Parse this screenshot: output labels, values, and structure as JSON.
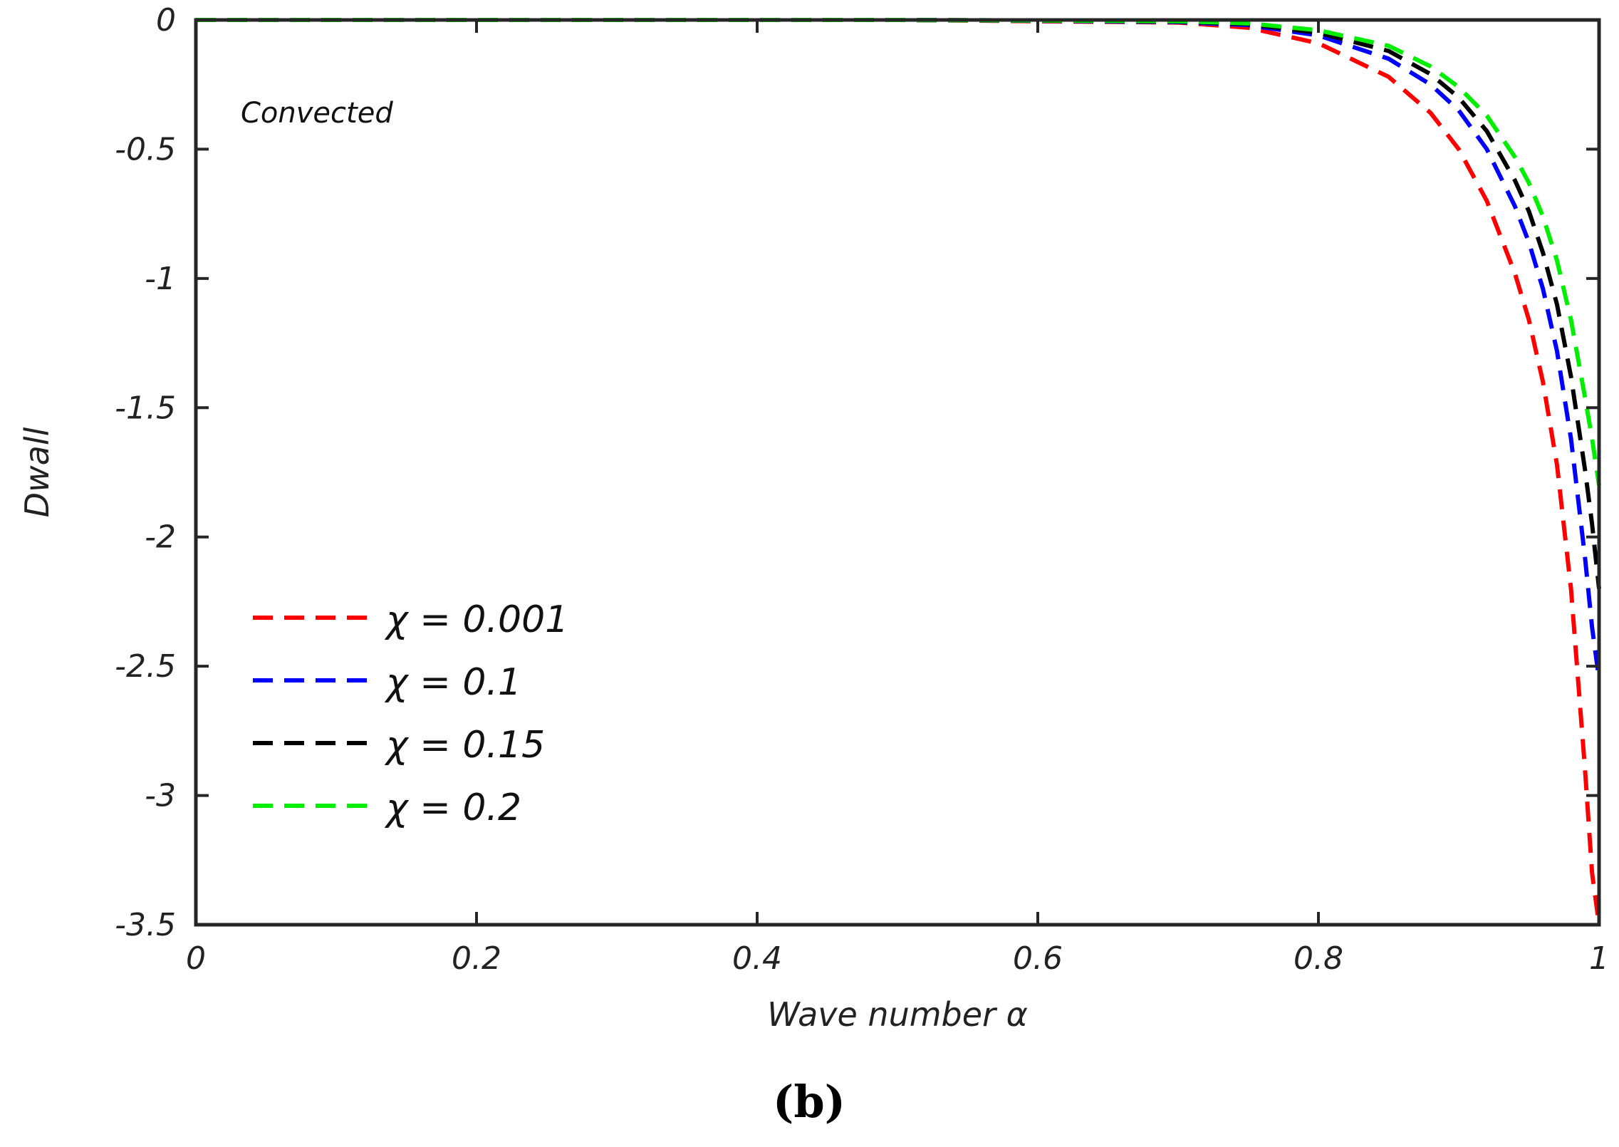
{
  "chart_data": {
    "type": "line",
    "xlabel": "Wave number α",
    "ylabel": "Dwall",
    "xlim": [
      0,
      1
    ],
    "ylim": [
      -3.5,
      0
    ],
    "x_ticks": [
      0,
      0.2,
      0.4,
      0.6,
      0.8,
      1
    ],
    "x_tick_labels": [
      "0",
      "0.2",
      "0.4",
      "0.6",
      "0.8",
      "1"
    ],
    "y_ticks": [
      0,
      -0.5,
      -1,
      -1.5,
      -2,
      -2.5,
      -3,
      -3.5
    ],
    "y_tick_labels": [
      "0",
      "-0.5",
      "-1",
      "-1.5",
      "-2",
      "-2.5",
      "-3",
      "-3.5"
    ],
    "grid": false,
    "legend_position": "lower-left",
    "annotation": "Convected",
    "panel_label": "(b)",
    "series": [
      {
        "name": "χ = 0.001",
        "color": "#ff0000",
        "x": [
          0,
          0.1,
          0.2,
          0.3,
          0.4,
          0.5,
          0.6,
          0.7,
          0.75,
          0.8,
          0.85,
          0.88,
          0.9,
          0.92,
          0.94,
          0.95,
          0.96,
          0.97,
          0.98,
          0.99,
          0.995,
          1.0
        ],
        "y": [
          0,
          0,
          0,
          0,
          0,
          0,
          -0.005,
          -0.01,
          -0.03,
          -0.09,
          -0.22,
          -0.36,
          -0.5,
          -0.7,
          -0.98,
          -1.16,
          -1.4,
          -1.72,
          -2.2,
          -2.9,
          -3.3,
          -3.5
        ]
      },
      {
        "name": "χ = 0.1",
        "color": "#0000ff",
        "x": [
          0,
          0.1,
          0.2,
          0.3,
          0.4,
          0.5,
          0.6,
          0.7,
          0.75,
          0.8,
          0.85,
          0.88,
          0.9,
          0.92,
          0.94,
          0.95,
          0.96,
          0.97,
          0.98,
          0.99,
          0.995,
          1.0
        ],
        "y": [
          0,
          0,
          0,
          0,
          0,
          0,
          -0.003,
          -0.008,
          -0.02,
          -0.06,
          -0.15,
          -0.25,
          -0.35,
          -0.5,
          -0.72,
          -0.86,
          -1.04,
          -1.28,
          -1.62,
          -2.08,
          -2.35,
          -2.55
        ]
      },
      {
        "name": "χ = 0.15",
        "color": "#000000",
        "x": [
          0,
          0.1,
          0.2,
          0.3,
          0.4,
          0.5,
          0.6,
          0.7,
          0.75,
          0.8,
          0.85,
          0.88,
          0.9,
          0.92,
          0.94,
          0.95,
          0.96,
          0.97,
          0.98,
          0.99,
          0.995,
          1.0
        ],
        "y": [
          0,
          0,
          0,
          0,
          0,
          0,
          -0.002,
          -0.006,
          -0.016,
          -0.05,
          -0.12,
          -0.21,
          -0.3,
          -0.43,
          -0.62,
          -0.74,
          -0.9,
          -1.1,
          -1.38,
          -1.74,
          -1.95,
          -2.2
        ]
      },
      {
        "name": "χ = 0.2",
        "color": "#00ee00",
        "x": [
          0,
          0.1,
          0.2,
          0.3,
          0.4,
          0.5,
          0.6,
          0.7,
          0.75,
          0.8,
          0.85,
          0.88,
          0.9,
          0.92,
          0.94,
          0.95,
          0.96,
          0.97,
          0.98,
          0.99,
          0.995,
          1.0
        ],
        "y": [
          0,
          0,
          0,
          0,
          0,
          0,
          -0.002,
          -0.005,
          -0.013,
          -0.04,
          -0.1,
          -0.18,
          -0.26,
          -0.37,
          -0.53,
          -0.63,
          -0.76,
          -0.93,
          -1.16,
          -1.46,
          -1.62,
          -1.8
        ]
      }
    ]
  }
}
